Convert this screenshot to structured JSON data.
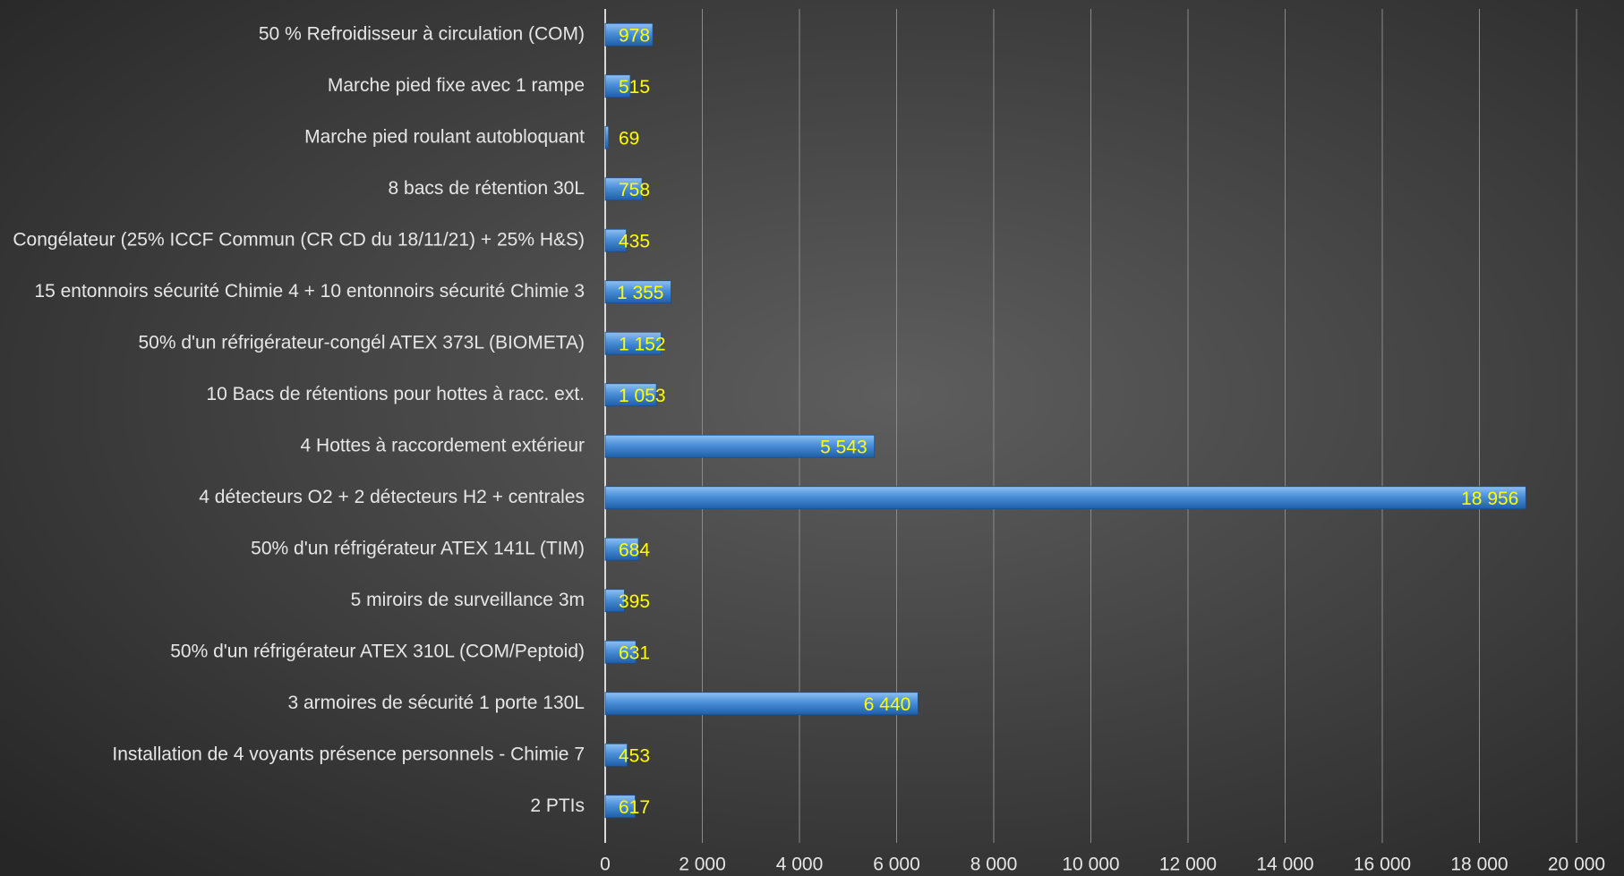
{
  "chart_data": {
    "type": "bar",
    "orientation": "horizontal",
    "categories": [
      "50 % Refroidisseur à circulation (COM)",
      "Marche pied fixe avec 1 rampe",
      "Marche pied roulant autobloquant",
      "8 bacs de rétention 30L",
      "Congélateur (25% ICCF Commun (CR CD du 18/11/21) + 25% H&S)",
      "15 entonnoirs sécurité Chimie 4 + 10 entonnoirs sécurité Chimie 3",
      "50% d'un réfrigérateur-congél ATEX 373L (BIOMETA)",
      "10 Bacs de rétentions pour hottes à racc. ext.",
      "4 Hottes à raccordement extérieur",
      "4 détecteurs O2 + 2 détecteurs H2 + centrales",
      "50% d'un réfrigérateur ATEX 141L (TIM)",
      "5 miroirs de surveillance 3m",
      "50% d'un réfrigérateur ATEX 310L (COM/Peptoid)",
      "3 armoires de sécurité 1 porte 130L",
      "Installation de 4 voyants présence personnels - Chimie 7",
      "2 PTIs"
    ],
    "values": [
      978,
      515,
      69,
      758,
      435,
      1355,
      1152,
      1053,
      5543,
      18956,
      684,
      395,
      631,
      6440,
      453,
      617
    ],
    "value_labels": [
      "978",
      "515",
      "69",
      "758",
      "435",
      "1 355",
      "1 152",
      "1 053",
      "5 543",
      "18 956",
      "684",
      "395",
      "631",
      "6 440",
      "453",
      "617"
    ],
    "color": "#4a8fd8",
    "label_color": "#ffff00",
    "xlim": [
      0,
      20000
    ],
    "xticks": [
      0,
      {
        "value": 2000,
        "label": "2 000"
      },
      {
        "value": 4000,
        "label": "4 000"
      },
      {
        "value": 6000,
        "label": "6 000"
      },
      {
        "value": 8000,
        "label": "8 000"
      },
      {
        "value": 10000,
        "label": "10 000"
      },
      {
        "value": 12000,
        "label": "12 000"
      },
      {
        "value": 14000,
        "label": "14 000"
      },
      {
        "value": 16000,
        "label": "16 000"
      },
      {
        "value": 18000,
        "label": "18 000"
      },
      {
        "value": 20000,
        "label": "20 000"
      }
    ],
    "grid": true
  }
}
